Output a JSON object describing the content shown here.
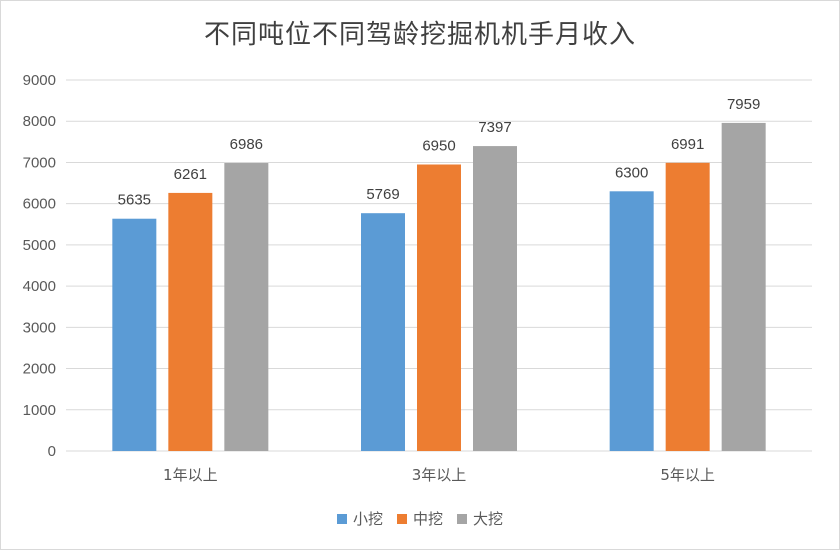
{
  "chart_data": {
    "type": "bar",
    "title": "不同吨位不同驾龄挖掘机机手月收入",
    "categories": [
      "1年以上",
      "3年以上",
      "5年以上"
    ],
    "series": [
      {
        "name": "小挖",
        "color": "#5b9bd5",
        "values": [
          5635,
          5769,
          6300
        ]
      },
      {
        "name": "中挖",
        "color": "#ed7d31",
        "values": [
          6261,
          6950,
          6991
        ]
      },
      {
        "name": "大挖",
        "color": "#a5a5a5",
        "values": [
          6986,
          7397,
          7959
        ]
      }
    ],
    "ylim": [
      0,
      9000
    ],
    "yticks": [
      "0",
      "1000",
      "2000",
      "3000",
      "4000",
      "5000",
      "6000",
      "7000",
      "8000",
      "9000"
    ],
    "grid": true,
    "legend": "bottom",
    "gridline_color": "#d9d9d9"
  }
}
